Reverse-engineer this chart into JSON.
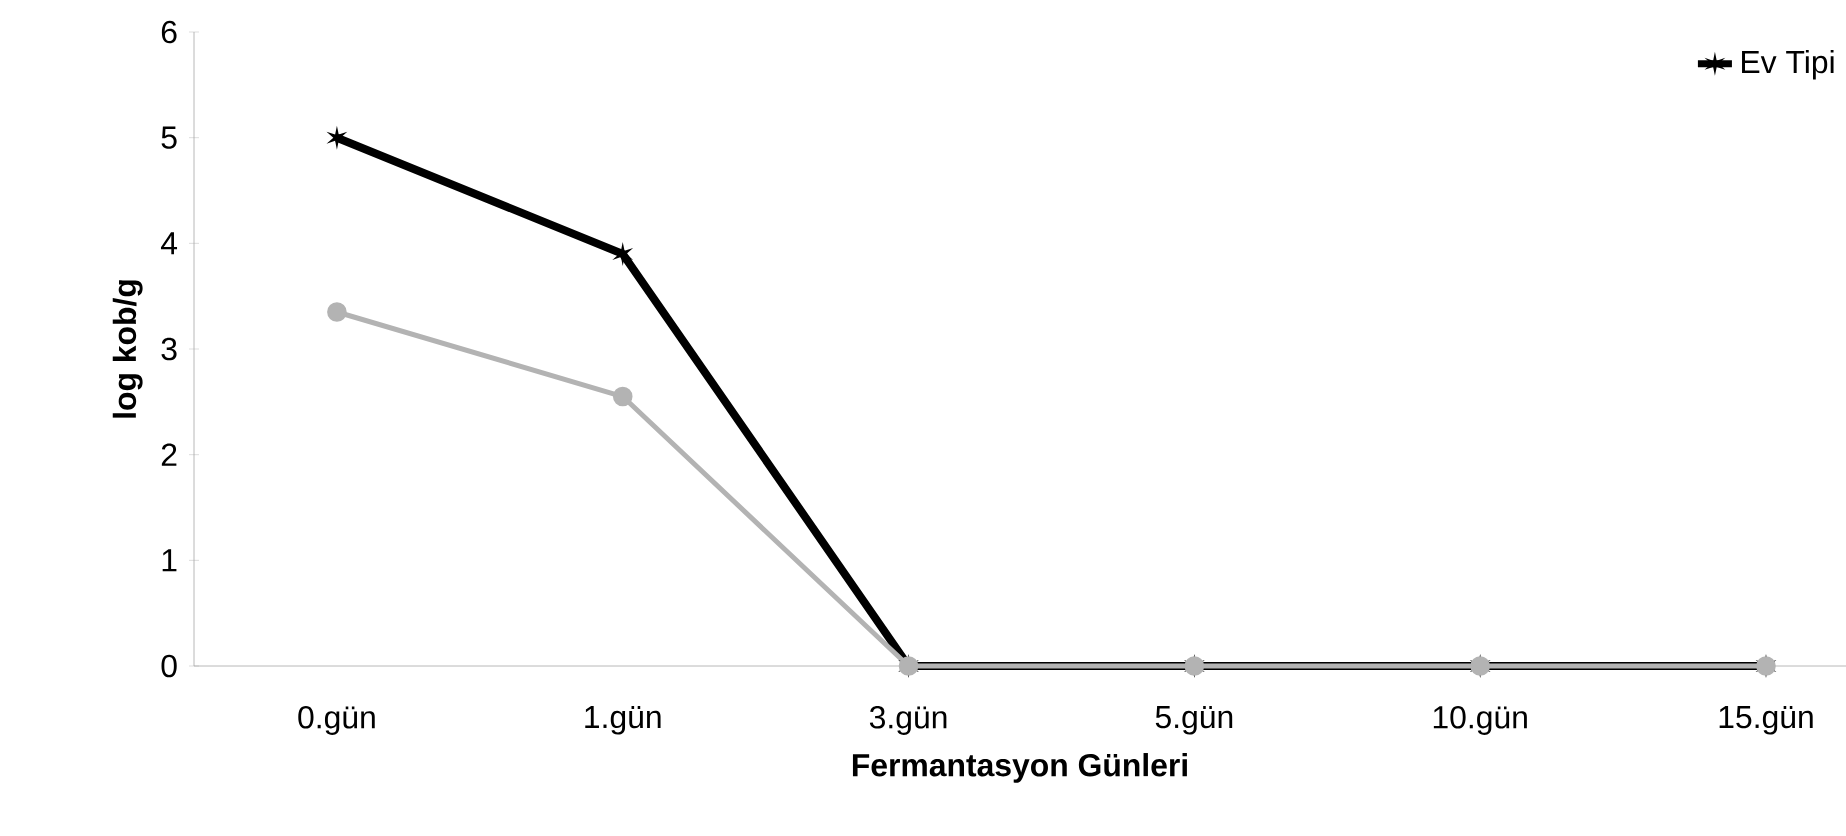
{
  "chart_data": {
    "type": "line",
    "xlabel": "Fermantasyon Günleri",
    "ylabel": "log kob/g",
    "categories": [
      "0.gün",
      "1.gün",
      "3.gün",
      "5.gün",
      "10.gün",
      "15.gün"
    ],
    "series": [
      {
        "name": "Ev Tipi",
        "color": "#000000",
        "marker": "cross",
        "values": [
          5,
          3.9,
          0,
          0,
          0,
          0
        ]
      },
      {
        "color": "#b3b3b3",
        "marker": "circle",
        "values": [
          3.35,
          2.55,
          0,
          0,
          0,
          0
        ]
      }
    ],
    "ylim": [
      0,
      6
    ],
    "yticks": [
      0,
      1,
      2,
      3,
      4,
      5,
      6
    ],
    "grid": false,
    "legend": "top right",
    "line_style": "solid"
  }
}
